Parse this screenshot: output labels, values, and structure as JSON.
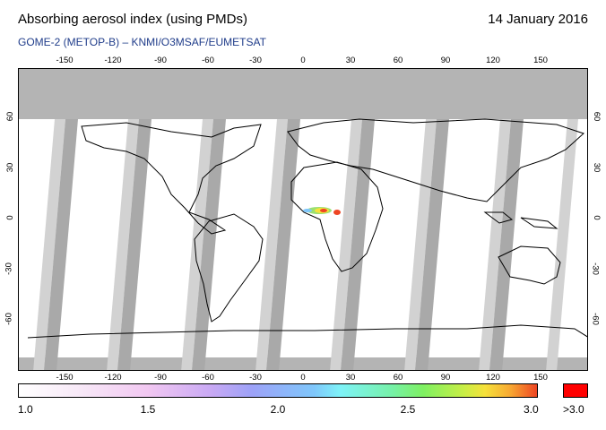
{
  "header": {
    "title": "Absorbing aerosol index (using PMDs)",
    "date": "14 January 2016",
    "subtitle": "GOME-2 (METOP-B)  –  KNMI/O3MSAF/EUMETSAT"
  },
  "map": {
    "longitude_ticks": [
      "-150",
      "-120",
      "-90",
      "-60",
      "-30",
      "0",
      "30",
      "60",
      "90",
      "120",
      "150"
    ],
    "latitude_ticks_left": [
      "60",
      "30",
      "0",
      "-30",
      "-60"
    ],
    "latitude_ticks_right": [
      "60",
      "30",
      "0",
      "-30",
      "-60"
    ],
    "colors": {
      "ocean": "#ffffff",
      "no_data": "#b4b4b4",
      "land_outline": "#000000"
    }
  },
  "colorbar": {
    "labels": [
      "1.0",
      "1.5",
      "2.0",
      "2.5",
      "3.0"
    ],
    "overflow_label": ">3.0",
    "overflow_color": "#ff0000"
  }
}
